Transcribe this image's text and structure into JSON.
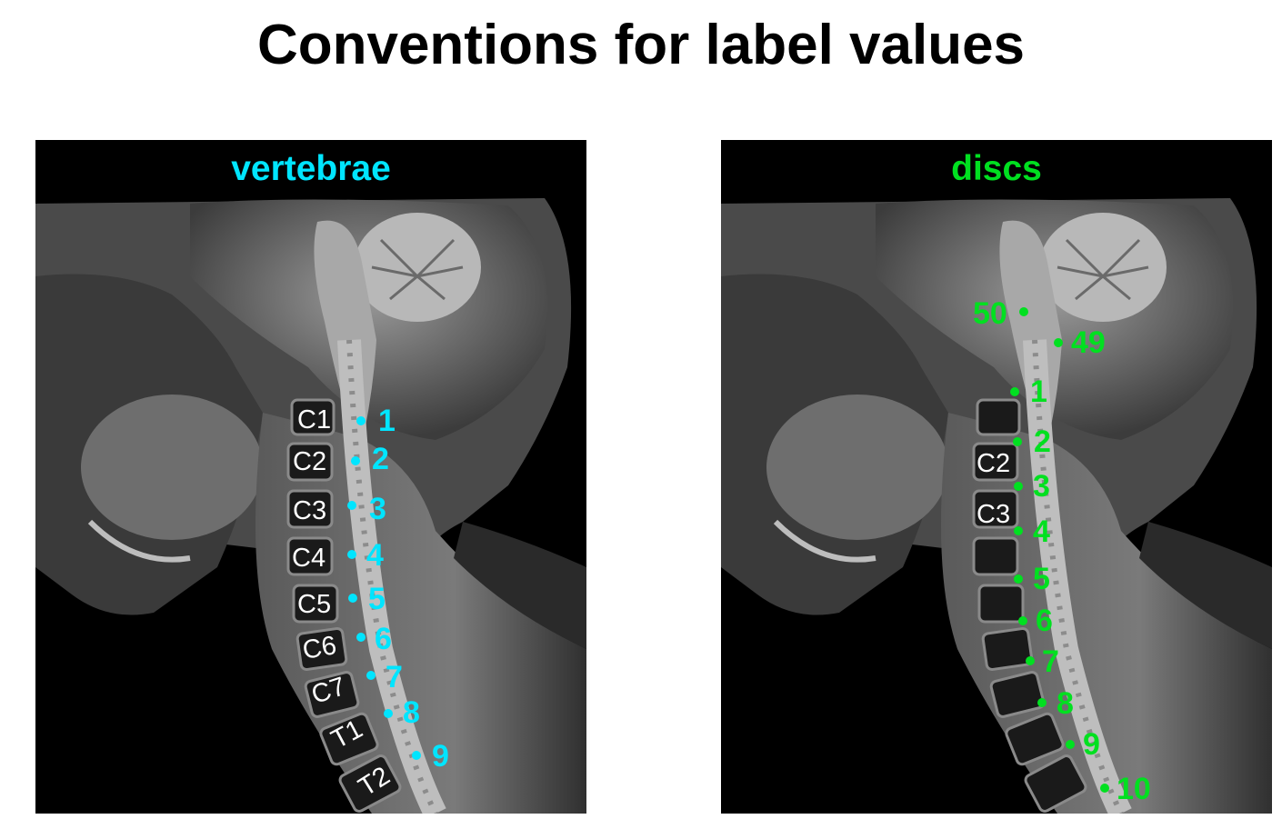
{
  "title": "Conventions for label values",
  "colors": {
    "vertebrae": "#00e5ff",
    "discs": "#00e020"
  },
  "panels": {
    "vertebrae": {
      "title": "vertebrae",
      "anatomy_labels": [
        "C1",
        "C2",
        "C3",
        "C4",
        "C5",
        "C6",
        "C7",
        "T1",
        "T2"
      ],
      "markers": [
        "1",
        "2",
        "3",
        "4",
        "5",
        "6",
        "7",
        "8",
        "9"
      ]
    },
    "discs": {
      "title": "discs",
      "anatomy_labels": [
        "C2",
        "C3"
      ],
      "markers": [
        "50",
        "49",
        "1",
        "2",
        "3",
        "4",
        "5",
        "6",
        "7",
        "8",
        "9",
        "10"
      ]
    }
  }
}
